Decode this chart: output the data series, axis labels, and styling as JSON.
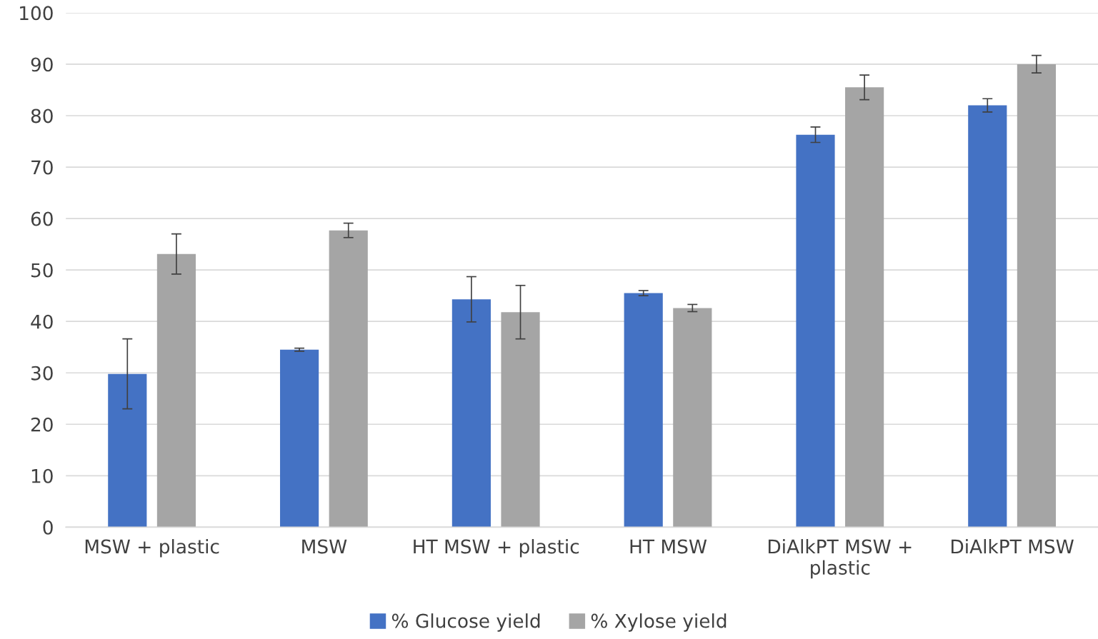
{
  "chart_data": {
    "type": "bar",
    "categories": [
      "MSW + plastic",
      "MSW",
      "HT MSW + plastic",
      "HT MSW",
      "DiAlkPT MSW + plastic",
      "DiAlkPT MSW"
    ],
    "series": [
      {
        "name": "% Glucose yield",
        "color": "#4472c4",
        "values": [
          29.8,
          34.5,
          44.3,
          45.5,
          76.3,
          82.0
        ],
        "errors": [
          6.8,
          0.3,
          4.4,
          0.5,
          1.5,
          1.3
        ]
      },
      {
        "name": "% Xylose yield",
        "color": "#a5a5a5",
        "values": [
          53.1,
          57.7,
          41.8,
          42.6,
          85.5,
          90.0
        ],
        "errors": [
          3.9,
          1.4,
          5.2,
          0.7,
          2.4,
          1.7
        ]
      }
    ],
    "ylim": [
      0,
      100
    ],
    "yticks": [
      0,
      10,
      20,
      30,
      40,
      50,
      60,
      70,
      80,
      90,
      100
    ],
    "grid": "y",
    "legend": "bottom"
  }
}
